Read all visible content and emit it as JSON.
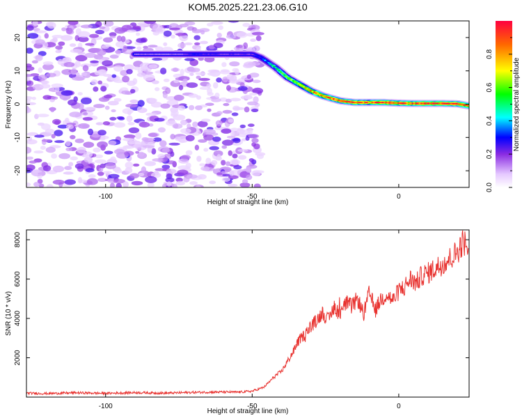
{
  "chart_data": [
    {
      "type": "heatmap",
      "title": "KOM5.2025.221.23.06.G10",
      "xlabel": "Height of straight line (km)",
      "ylabel": "Frequency (Hz)",
      "xlim": [
        -127,
        24
      ],
      "ylim": [
        -25,
        25
      ],
      "xticks": [
        -100,
        -50,
        0
      ],
      "xtick_labels": [
        "-100",
        "-50",
        "0"
      ],
      "yticks": [
        -20,
        -10,
        0,
        10,
        20
      ],
      "ytick_labels": [
        "-20",
        "-10",
        "0",
        "10",
        "20"
      ],
      "colorbar": {
        "label": "Normalized spectral amplitude",
        "range": [
          0,
          1
        ],
        "ticks": [
          0.0,
          0.2,
          0.4,
          0.6,
          0.8
        ],
        "tick_labels": [
          "0.0",
          "0.2",
          "0.4",
          "0.6",
          "0.8"
        ]
      },
      "noise_region_x": [
        -127,
        -47
      ],
      "ridge": {
        "description_points_x": [
          -90,
          -75,
          -70,
          -60,
          -50,
          -47,
          -42,
          -38,
          -34,
          -30,
          -26,
          -20,
          -15,
          -10,
          -5,
          0,
          5,
          10,
          15,
          20,
          24
        ],
        "description_points_y": [
          15,
          15,
          15,
          15,
          15,
          14,
          11,
          8,
          6,
          4,
          2.5,
          1,
          0.5,
          0.5,
          0.5,
          0.3,
          0.2,
          0.2,
          0.2,
          0.1,
          -0.5
        ],
        "amplitudes": [
          0.15,
          0.15,
          0.25,
          0.2,
          0.2,
          0.3,
          0.5,
          0.6,
          0.7,
          0.8,
          0.85,
          0.9,
          0.9,
          0.85,
          0.95,
          0.9,
          0.9,
          0.95,
          0.95,
          0.9,
          0.85
        ]
      }
    },
    {
      "type": "line",
      "xlabel": "Height of straight line (km)",
      "ylabel": "SNR (10 * v/v)",
      "xlim": [
        -127,
        24
      ],
      "ylim": [
        0,
        8500
      ],
      "xticks": [
        -100,
        -50,
        0
      ],
      "xtick_labels": [
        "-100",
        "-50",
        "0"
      ],
      "yticks": [
        2000,
        4000,
        6000,
        8000
      ],
      "ytick_labels": [
        "2000",
        "4000",
        "6000",
        "8000"
      ],
      "color": "#e8312e",
      "series": [
        {
          "name": "SNR",
          "x": [
            -127,
            -120,
            -110,
            -100,
            -90,
            -80,
            -70,
            -60,
            -55,
            -50,
            -46,
            -44,
            -42,
            -40,
            -38,
            -36,
            -34,
            -32,
            -30,
            -28,
            -26,
            -24,
            -22,
            -20,
            -18,
            -16,
            -14,
            -12,
            -10,
            -8,
            -6,
            -4,
            -2,
            0,
            2,
            4,
            6,
            8,
            10,
            12,
            14,
            16,
            18,
            20,
            22,
            24
          ],
          "y": [
            200,
            180,
            220,
            190,
            230,
            200,
            240,
            260,
            250,
            300,
            500,
            800,
            1100,
            1300,
            1800,
            2300,
            2900,
            3200,
            3600,
            3900,
            4300,
            3900,
            4600,
            4200,
            4800,
            4600,
            5000,
            4200,
            5300,
            4400,
            5000,
            5200,
            4900,
            5400,
            5600,
            6000,
            5800,
            6200,
            6300,
            6500,
            6700,
            6900,
            7100,
            7400,
            7900,
            7700
          ]
        }
      ]
    }
  ]
}
